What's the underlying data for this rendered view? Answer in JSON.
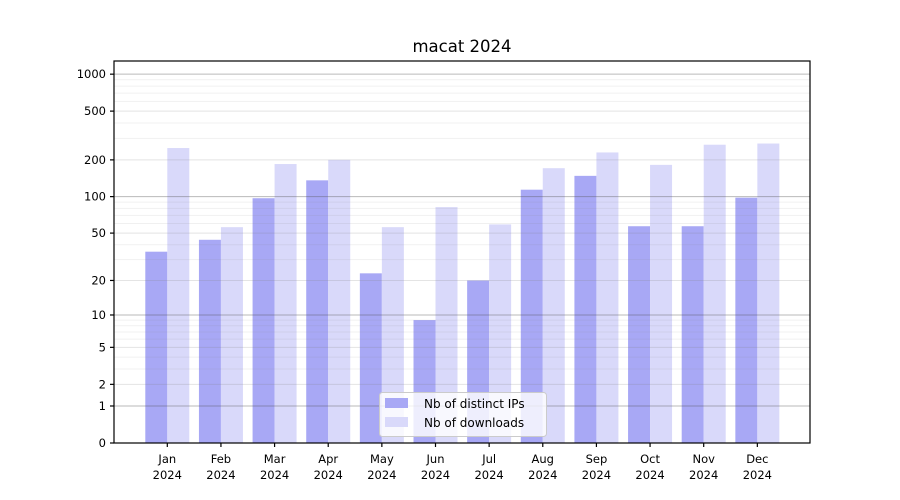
{
  "title": "macat 2024",
  "colors": {
    "ips_bar": "#a8a8f5",
    "downloads_bar": "#d9d9fa",
    "axis": "#000000",
    "grid_major": "rgba(80,80,80,0.40)",
    "grid_minor": "rgba(130,130,130,0.22)",
    "grid_faint": "rgba(130,130,130,0.12)",
    "legend_border": "#cbcbcb",
    "legend_background": "rgba(255,255,255,0.8)"
  },
  "chart_data": {
    "type": "bar",
    "scale": "log1p",
    "title": "macat 2024",
    "categories": [
      "Jan",
      "Feb",
      "Mar",
      "Apr",
      "May",
      "Jun",
      "Jul",
      "Aug",
      "Sep",
      "Oct",
      "Nov",
      "Dec"
    ],
    "category_year": "2024",
    "series": [
      {
        "name": "Nb of distinct IPs",
        "values": [
          35,
          44,
          97,
          136,
          23,
          9,
          20,
          114,
          148,
          57,
          57,
          98
        ]
      },
      {
        "name": "Nb of downloads",
        "values": [
          250,
          56,
          185,
          200,
          56,
          82,
          59,
          171,
          230,
          182,
          266,
          272
        ]
      }
    ],
    "yticks": [
      0,
      1,
      2,
      5,
      10,
      20,
      50,
      100,
      200,
      500,
      1000
    ],
    "ytick_major": [
      1,
      10,
      100,
      1000
    ],
    "ytick_minor_faint": [
      3,
      4,
      6,
      7,
      8,
      9,
      30,
      40,
      60,
      70,
      80,
      90,
      300,
      400,
      600,
      700,
      800,
      900
    ],
    "ylim": [
      0,
      1280
    ],
    "grid": true,
    "legend_position": "lower center",
    "xlabel": "",
    "ylabel": ""
  }
}
